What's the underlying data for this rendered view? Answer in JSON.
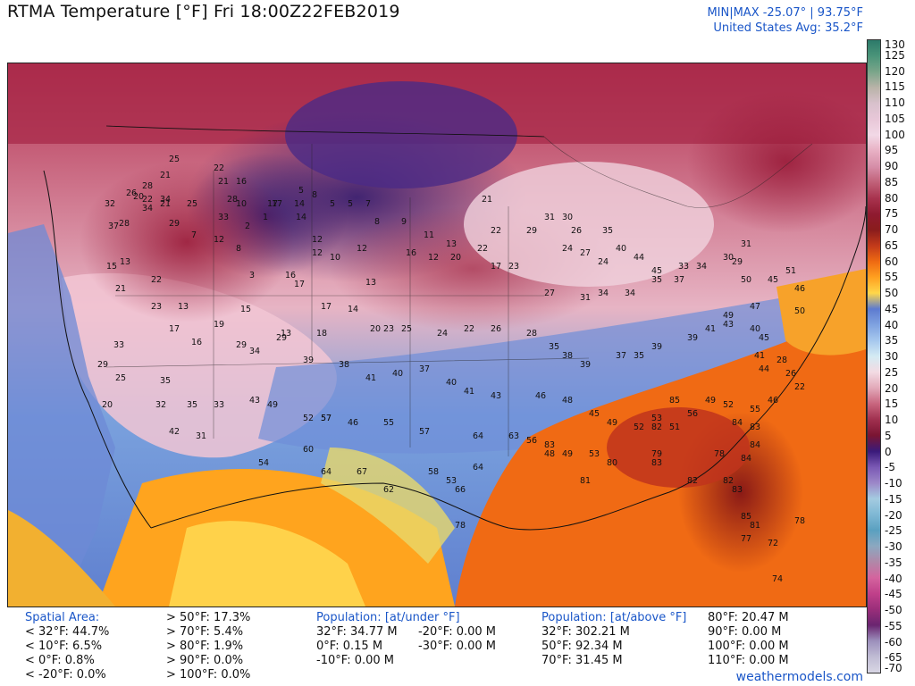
{
  "header": {
    "title": "RTMA Temperature [°F]  Fri 18:00Z22FEB2019",
    "minmax": "MIN|MAX -25.07°  |  93.75°F",
    "us_avg": "United States Avg: 35.2°F"
  },
  "colorbar": {
    "ticks": [
      "130",
      "125",
      "120",
      "115",
      "110",
      "105",
      "100",
      "95",
      "90",
      "85",
      "80",
      "75",
      "70",
      "65",
      "60",
      "55",
      "50",
      "45",
      "40",
      "35",
      "30",
      "25",
      "20",
      "15",
      "10",
      "5",
      "0",
      "-5",
      "-10",
      "-15",
      "-20",
      "-25",
      "-30",
      "-35",
      "-40",
      "-45",
      "-50",
      "-55",
      "-60",
      "-65",
      "-70"
    ],
    "colors": [
      "#2c7a6a",
      "#4a9479",
      "#7aa58a",
      "#b9b3a8",
      "#d8c1cc",
      "#e8c7d8",
      "#f2d9e6",
      "#e8b0c4",
      "#d68ea8",
      "#c06078",
      "#a8334e",
      "#8f1a30",
      "#8a1c1c",
      "#c23a1a",
      "#ee6a12",
      "#ffa020",
      "#ffd74a",
      "#5d7bd0",
      "#7fa2e0",
      "#a6c8ee",
      "#d4ebf3",
      "#f3dbe3",
      "#e2a9b9",
      "#c8657e",
      "#a0304f",
      "#7a1532",
      "#3a1a7a",
      "#7a58b4",
      "#9c87c8",
      "#a4cbe0",
      "#7fb8d4",
      "#5aa0c0",
      "#8ca8c0",
      "#b088a8",
      "#d4649e",
      "#c0408a",
      "#9a2e7a",
      "#6a2570",
      "#9c90bc",
      "#c0bcd4",
      "#d8d6e4"
    ]
  },
  "stats": {
    "spatial": {
      "heading": "Spatial Area:",
      "lines": [
        "< 32°F: 44.7%",
        "< 10°F: 6.5%",
        "< 0°F: 0.8%",
        "< -20°F: 0.0%"
      ],
      "lines2": [
        "> 50°F: 17.3%",
        "> 70°F: 5.4%",
        "> 80°F: 1.9%",
        "> 90°F: 0.0%",
        "> 100°F: 0.0%"
      ]
    },
    "pop_under": {
      "heading": "Population: [at/under °F]",
      "lines": [
        "32°F: 34.77 M",
        "0°F: 0.15 M",
        "-10°F: 0.00 M"
      ],
      "lines2": [
        "-20°F: 0.00 M",
        "-30°F: 0.00 M"
      ]
    },
    "pop_above": {
      "heading": "Population: [at/above °F]",
      "lines": [
        "32°F: 302.21 M",
        "50°F: 92.34 M",
        "70°F: 31.45 M"
      ],
      "lines2": [
        "80°F: 20.47 M",
        "90°F: 0.00 M",
        "100°F: 0.00 M",
        "110°F: 0.00 M"
      ]
    }
  },
  "footer": {
    "source": "weathermodels.com"
  },
  "map": {
    "values": [
      "25",
      "21",
      "28",
      "22",
      "34",
      "26",
      "32",
      "37",
      "28",
      "20",
      "34",
      "21",
      "29",
      "25",
      "22",
      "21",
      "28",
      "16",
      "10",
      "17",
      "14",
      "5",
      "8",
      "5",
      "5",
      "7",
      "8",
      "9",
      "11",
      "13",
      "21",
      "22",
      "29",
      "31",
      "30",
      "26",
      "24",
      "27",
      "24",
      "35",
      "40",
      "44",
      "45",
      "15",
      "13",
      "21",
      "22",
      "7",
      "12",
      "2",
      "1",
      "17",
      "14",
      "12",
      "8",
      "3",
      "16",
      "17",
      "12",
      "10",
      "12",
      "13",
      "16",
      "12",
      "20",
      "22",
      "17",
      "23",
      "27",
      "31",
      "34",
      "34",
      "35",
      "37",
      "33",
      "34",
      "30",
      "29",
      "31",
      "33",
      "23",
      "13",
      "17",
      "16",
      "15",
      "19",
      "29",
      "29",
      "13",
      "18",
      "17",
      "14",
      "20",
      "23",
      "25",
      "24",
      "22",
      "26",
      "28",
      "35",
      "38",
      "39",
      "37",
      "35",
      "39",
      "39",
      "41",
      "43",
      "40",
      "45",
      "47",
      "49",
      "50",
      "45",
      "51",
      "46",
      "50",
      "44",
      "41",
      "28",
      "26",
      "22",
      "33",
      "29",
      "25",
      "20",
      "32",
      "35",
      "34",
      "39",
      "38",
      "41",
      "40",
      "37",
      "40",
      "41",
      "43",
      "46",
      "48",
      "45",
      "49",
      "52",
      "53",
      "51",
      "56",
      "49",
      "52",
      "55",
      "46",
      "42",
      "35",
      "33",
      "31",
      "43",
      "49",
      "52",
      "57",
      "46",
      "55",
      "57",
      "64",
      "63",
      "56",
      "48",
      "49",
      "53",
      "54",
      "60",
      "57",
      "64",
      "67",
      "62",
      "58",
      "53",
      "66",
      "64",
      "78",
      "83",
      "85",
      "82",
      "84",
      "83",
      "84",
      "84",
      "82",
      "83",
      "85",
      "81",
      "77",
      "78",
      "72",
      "74",
      "79",
      "81",
      "80",
      "83",
      "82",
      "78"
    ]
  }
}
